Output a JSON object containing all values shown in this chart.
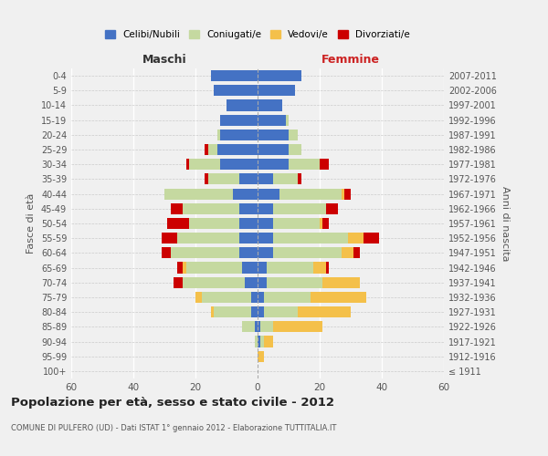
{
  "age_groups": [
    "100+",
    "95-99",
    "90-94",
    "85-89",
    "80-84",
    "75-79",
    "70-74",
    "65-69",
    "60-64",
    "55-59",
    "50-54",
    "45-49",
    "40-44",
    "35-39",
    "30-34",
    "25-29",
    "20-24",
    "15-19",
    "10-14",
    "5-9",
    "0-4"
  ],
  "birth_years": [
    "≤ 1911",
    "1912-1916",
    "1917-1921",
    "1922-1926",
    "1927-1931",
    "1932-1936",
    "1937-1941",
    "1942-1946",
    "1947-1951",
    "1952-1956",
    "1957-1961",
    "1962-1966",
    "1967-1971",
    "1972-1976",
    "1977-1981",
    "1982-1986",
    "1987-1991",
    "1992-1996",
    "1997-2001",
    "2002-2006",
    "2007-2011"
  ],
  "male": {
    "celibe": [
      0,
      0,
      0,
      1,
      2,
      2,
      4,
      5,
      6,
      6,
      6,
      6,
      8,
      6,
      12,
      13,
      12,
      12,
      10,
      14,
      15
    ],
    "coniugato": [
      0,
      0,
      1,
      4,
      12,
      16,
      20,
      18,
      22,
      20,
      16,
      18,
      22,
      10,
      10,
      3,
      1,
      0,
      0,
      0,
      0
    ],
    "vedovo": [
      0,
      0,
      0,
      0,
      1,
      2,
      0,
      1,
      0,
      0,
      0,
      0,
      0,
      0,
      0,
      0,
      0,
      0,
      0,
      0,
      0
    ],
    "divorziato": [
      0,
      0,
      0,
      0,
      0,
      0,
      3,
      2,
      3,
      5,
      7,
      4,
      0,
      1,
      1,
      1,
      0,
      0,
      0,
      0,
      0
    ]
  },
  "female": {
    "nubile": [
      0,
      0,
      1,
      1,
      2,
      2,
      3,
      3,
      5,
      5,
      5,
      5,
      7,
      5,
      10,
      10,
      10,
      9,
      8,
      12,
      14
    ],
    "coniugata": [
      0,
      0,
      1,
      4,
      11,
      15,
      18,
      15,
      22,
      24,
      15,
      17,
      20,
      8,
      10,
      4,
      3,
      1,
      0,
      0,
      0
    ],
    "vedova": [
      0,
      2,
      3,
      16,
      17,
      18,
      12,
      4,
      4,
      5,
      1,
      0,
      1,
      0,
      0,
      0,
      0,
      0,
      0,
      0,
      0
    ],
    "divorziata": [
      0,
      0,
      0,
      0,
      0,
      0,
      0,
      1,
      2,
      5,
      2,
      4,
      2,
      1,
      3,
      0,
      0,
      0,
      0,
      0,
      0
    ]
  },
  "colors": {
    "celibe": "#4472c4",
    "coniugato": "#c5d9a0",
    "vedovo": "#f4c04a",
    "divorziato": "#cc0000"
  },
  "legend_labels": [
    "Celibi/Nubili",
    "Coniugati/e",
    "Vedovi/e",
    "Divorziati/e"
  ],
  "title": "Popolazione per età, sesso e stato civile - 2012",
  "subtitle": "COMUNE DI PULFERO (UD) - Dati ISTAT 1° gennaio 2012 - Elaborazione TUTTITALIA.IT",
  "xlabel_left": "Maschi",
  "xlabel_right": "Femmine",
  "ylabel_left": "Fasce di età",
  "ylabel_right": "Anni di nascita",
  "xlim": 60,
  "background_color": "#f0f0f0"
}
